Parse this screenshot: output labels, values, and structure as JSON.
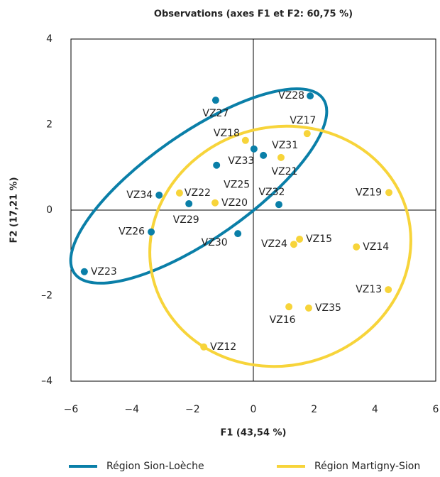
{
  "chart_data": {
    "type": "scatter",
    "title": "Observations (axes F1 et F2: 60,75 %)",
    "x_label": "F1 (43,54 %)",
    "y_label": "F2 (17,21 %)",
    "xlim": [
      -6,
      6
    ],
    "ylim": [
      -4,
      4
    ],
    "xticks": [
      {
        "value": -6,
        "label": "−6"
      },
      {
        "value": -4,
        "label": "−4"
      },
      {
        "value": -2,
        "label": "−2"
      },
      0,
      2,
      4,
      6
    ],
    "yticks": [
      {
        "value": -4,
        "label": "–4"
      },
      {
        "value": -2,
        "label": "–2"
      },
      0,
      2,
      4
    ],
    "series": [
      {
        "name": "Région Sion-Loèche",
        "color": "#0a7fa8",
        "labels": [
          "VZ28",
          "VZ27",
          "VZ33",
          "VZ31",
          "VZ25",
          "VZ34",
          "VZ29",
          "VZ32",
          "VZ26",
          "VZ30",
          "VZ23"
        ],
        "x": [
          1.87,
          -1.24,
          0.02,
          0.33,
          -1.21,
          -3.1,
          -2.12,
          0.84,
          -3.36,
          -0.51,
          -5.56
        ],
        "values": [
          2.67,
          2.57,
          1.43,
          1.28,
          1.05,
          0.35,
          0.15,
          0.13,
          -0.51,
          -0.55,
          -1.44
        ]
      },
      {
        "name": "Région Martigny-Sion",
        "color": "#f7d43a",
        "labels": [
          "VZ17",
          "VZ18",
          "VZ21",
          "VZ19",
          "VZ22",
          "VZ20",
          "VZ15",
          "VZ24",
          "VZ14",
          "VZ13",
          "VZ16",
          "VZ35",
          "VZ12"
        ],
        "x": [
          1.77,
          -0.26,
          0.91,
          4.46,
          -2.43,
          -1.26,
          1.52,
          1.33,
          3.39,
          4.44,
          1.17,
          1.82,
          -1.63
        ],
        "values": [
          1.79,
          1.63,
          1.23,
          0.41,
          0.4,
          0.17,
          -0.68,
          -0.8,
          -0.86,
          -1.86,
          -2.26,
          -2.29,
          -3.2
        ]
      }
    ]
  }
}
